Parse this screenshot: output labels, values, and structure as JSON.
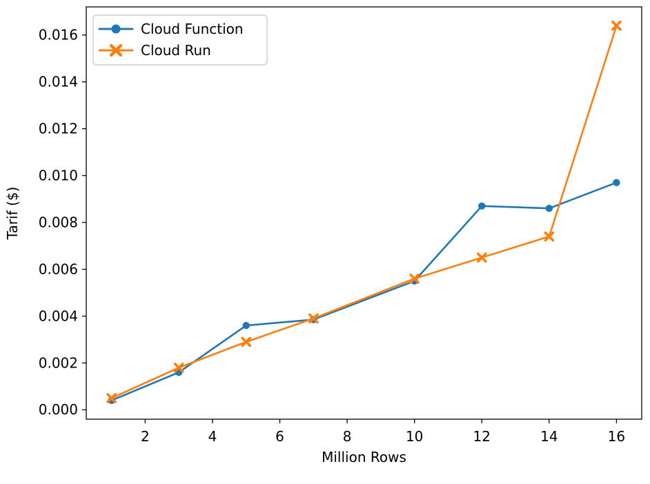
{
  "chart_data": {
    "type": "line",
    "x": [
      1,
      3,
      5,
      7,
      10,
      12,
      14,
      16
    ],
    "series": [
      {
        "name": "Cloud Function",
        "color": "#1f77b4",
        "marker": "circle",
        "values": [
          0.0004,
          0.0016,
          0.0036,
          0.00385,
          0.0055,
          0.0087,
          0.0086,
          0.0097
        ]
      },
      {
        "name": "Cloud Run",
        "color": "#ff7f0e",
        "marker": "x",
        "values": [
          0.0005,
          0.0018,
          0.0029,
          0.0039,
          0.0056,
          0.0065,
          0.0074,
          0.0164
        ]
      }
    ],
    "title": "",
    "xlabel": "Million Rows",
    "ylabel": "Tarif ($)",
    "xticks": [
      2,
      4,
      6,
      8,
      10,
      12,
      14,
      16
    ],
    "yticks": [
      0.0,
      0.002,
      0.004,
      0.006,
      0.008,
      0.01,
      0.012,
      0.014,
      0.016
    ],
    "xlim": [
      0.25,
      16.75
    ],
    "ylim": [
      -0.0004,
      0.0172
    ],
    "grid": false,
    "legend": {
      "position": "upper left",
      "entries": [
        "Cloud Function",
        "Cloud Run"
      ]
    },
    "axis_color": "#000000",
    "legend_border_color": "#cccccc",
    "background": "#ffffff"
  }
}
